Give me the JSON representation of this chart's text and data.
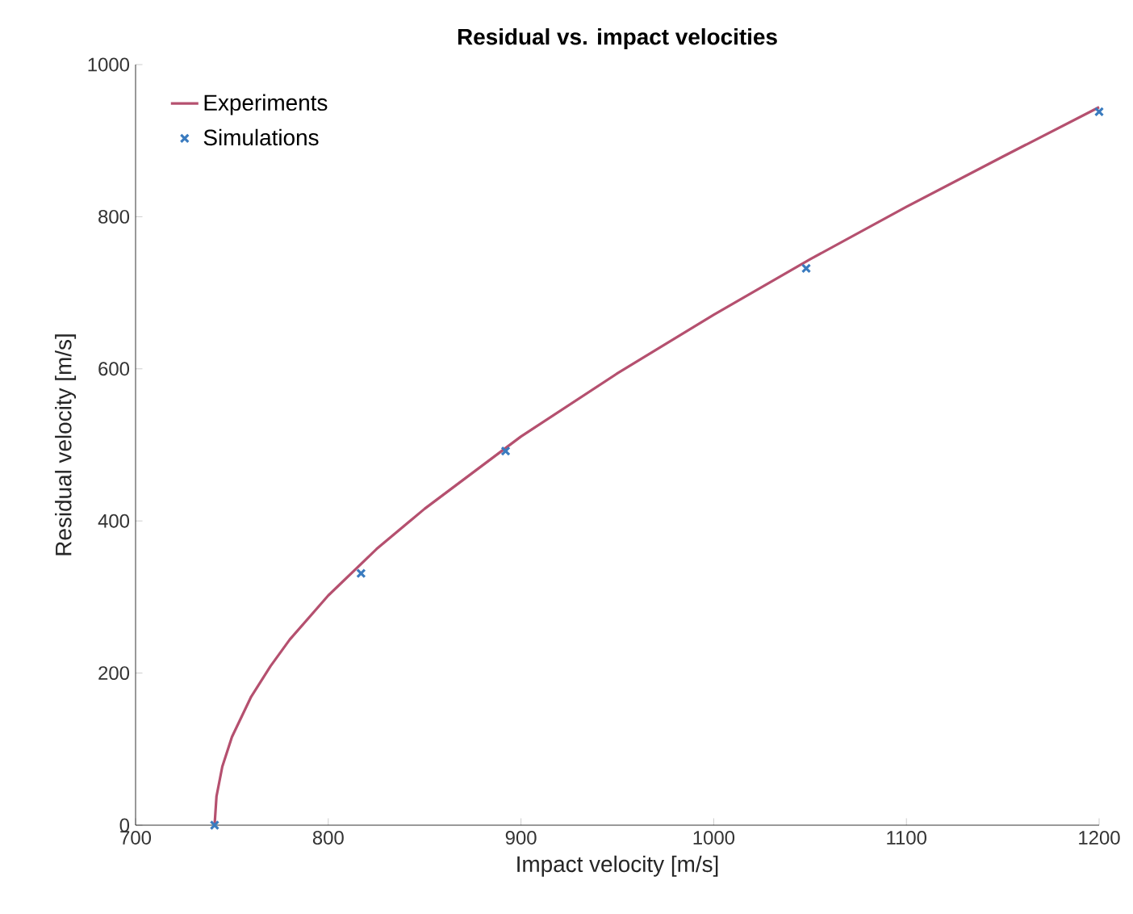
{
  "chart_data": {
    "type": "line",
    "title": "Residual vs. impact velocities",
    "xlabel": "Impact velocity [m/s]",
    "ylabel": "Residual velocity [m/s]",
    "xlim": [
      700,
      1200
    ],
    "ylim": [
      0,
      1000
    ],
    "xticks": [
      700,
      800,
      900,
      1000,
      1100,
      1200
    ],
    "yticks": [
      0,
      200,
      400,
      600,
      800,
      1000
    ],
    "legend": "top left",
    "grid": false,
    "series": [
      {
        "name": "Experiments",
        "color": "#b5506f",
        "line_style": "solid",
        "marker": "none",
        "x": [
          741,
          742,
          745,
          750,
          760,
          770,
          780,
          800,
          825,
          850,
          900,
          950,
          1000,
          1050,
          1100,
          1150,
          1200
        ],
        "values": [
          0,
          38,
          77,
          116,
          169,
          209,
          244,
          302,
          363,
          416,
          511,
          594,
          671,
          744,
          813,
          879,
          944
        ]
      },
      {
        "name": "Simulations",
        "type": "scatter",
        "color": "#3a7bbf",
        "marker": "cross",
        "x": [
          741,
          817,
          892,
          1048,
          1200
        ],
        "values": [
          0,
          331,
          492,
          732,
          938
        ]
      }
    ]
  }
}
